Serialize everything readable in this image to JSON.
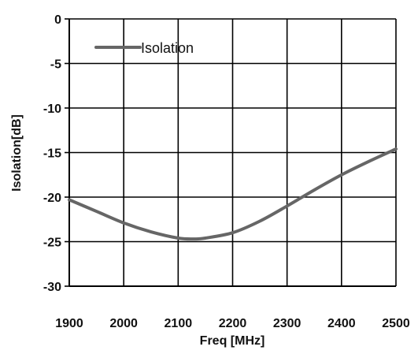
{
  "chart_data": {
    "type": "line",
    "title": "",
    "xlabel": "Freq [MHz]",
    "ylabel": "Isolation[dB]",
    "xlim": [
      1900,
      2500
    ],
    "ylim": [
      -30,
      0
    ],
    "x_ticks": [
      1900,
      2000,
      2100,
      2200,
      2300,
      2400,
      2500
    ],
    "y_ticks": [
      0,
      -5,
      -10,
      -15,
      -20,
      -25,
      -30
    ],
    "x_tick_labels": [
      "1900",
      "2000",
      "2100",
      "2200",
      "2300",
      "2400",
      "2500"
    ],
    "y_tick_labels": [
      "0",
      "-5",
      "-10",
      "-15",
      "-20",
      "-25",
      "-30"
    ],
    "grid": true,
    "legend": {
      "position": "top-left",
      "entries": [
        "Isolation"
      ]
    },
    "series": [
      {
        "name": "Isolation",
        "color": "#666666",
        "x": [
          1900,
          1950,
          2000,
          2050,
          2100,
          2130,
          2150,
          2200,
          2250,
          2300,
          2350,
          2400,
          2450,
          2500
        ],
        "y": [
          -20.3,
          -21.6,
          -22.9,
          -23.9,
          -24.6,
          -24.7,
          -24.6,
          -24.0,
          -22.7,
          -21.0,
          -19.2,
          -17.5,
          -16.0,
          -14.6
        ]
      }
    ]
  }
}
